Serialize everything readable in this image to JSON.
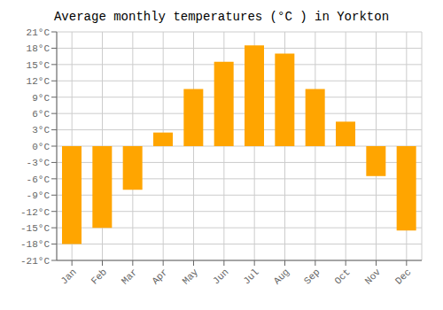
{
  "chart_data": {
    "type": "bar",
    "title": "Average monthly temperatures (°C ) in Yorkton",
    "categories": [
      "Jan",
      "Feb",
      "Mar",
      "Apr",
      "May",
      "Jun",
      "Jul",
      "Aug",
      "Sep",
      "Oct",
      "Nov",
      "Dec"
    ],
    "values": [
      -18,
      -15,
      -8,
      2.5,
      10.5,
      15.5,
      18.5,
      17,
      10.5,
      4.5,
      -5.5,
      -15.5
    ],
    "color": "#FFA500",
    "ylim": [
      -21,
      21
    ],
    "yticks": [
      {
        "value": -21,
        "label": "-21°C"
      },
      {
        "value": -18,
        "label": "-18°C"
      },
      {
        "value": -15,
        "label": "-15°C"
      },
      {
        "value": -12,
        "label": "-12°C"
      },
      {
        "value": -9,
        "label": "-9°C"
      },
      {
        "value": -6,
        "label": "-6°C"
      },
      {
        "value": -3,
        "label": "-3°C"
      },
      {
        "value": 0,
        "label": "0°C"
      },
      {
        "value": 3,
        "label": "3°C"
      },
      {
        "value": 6,
        "label": "6°C"
      },
      {
        "value": 9,
        "label": "9°C"
      },
      {
        "value": 12,
        "label": "12°C"
      },
      {
        "value": 15,
        "label": "15°C"
      },
      {
        "value": 18,
        "label": "18°C"
      },
      {
        "value": 21,
        "label": "21°C"
      }
    ],
    "grid": true
  }
}
